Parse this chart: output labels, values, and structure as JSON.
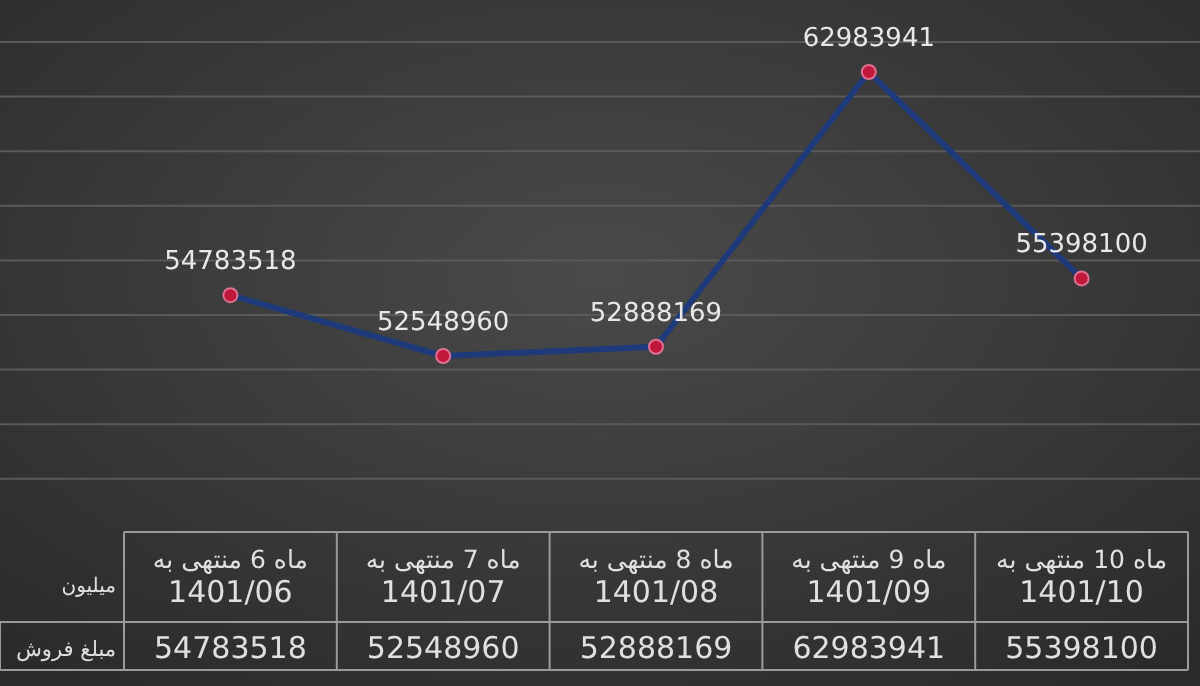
{
  "chart_data": {
    "type": "line",
    "categories": [
      "ماه 6 منتهی به 1401/06",
      "ماه 7 منتهی به 1401/07",
      "ماه 8 منتهی به 1401/08",
      "ماه 9 منتهی به 1401/09",
      "ماه 10 منتهی به 1401/10"
    ],
    "series": [
      {
        "name": "مبلغ فروش",
        "color": "#1f3a7a",
        "values": [
          54783518,
          52548960,
          52888169,
          62983941,
          55398100
        ],
        "value_labels": [
          "54783518",
          "52548960",
          "52888169",
          "62983941",
          "55398100"
        ]
      }
    ],
    "marker": "circle",
    "grid": "y",
    "annotations": [
      "میلیون",
      "54783518",
      "52548960",
      "52888169",
      "62983941",
      "55398100"
    ]
  }
}
